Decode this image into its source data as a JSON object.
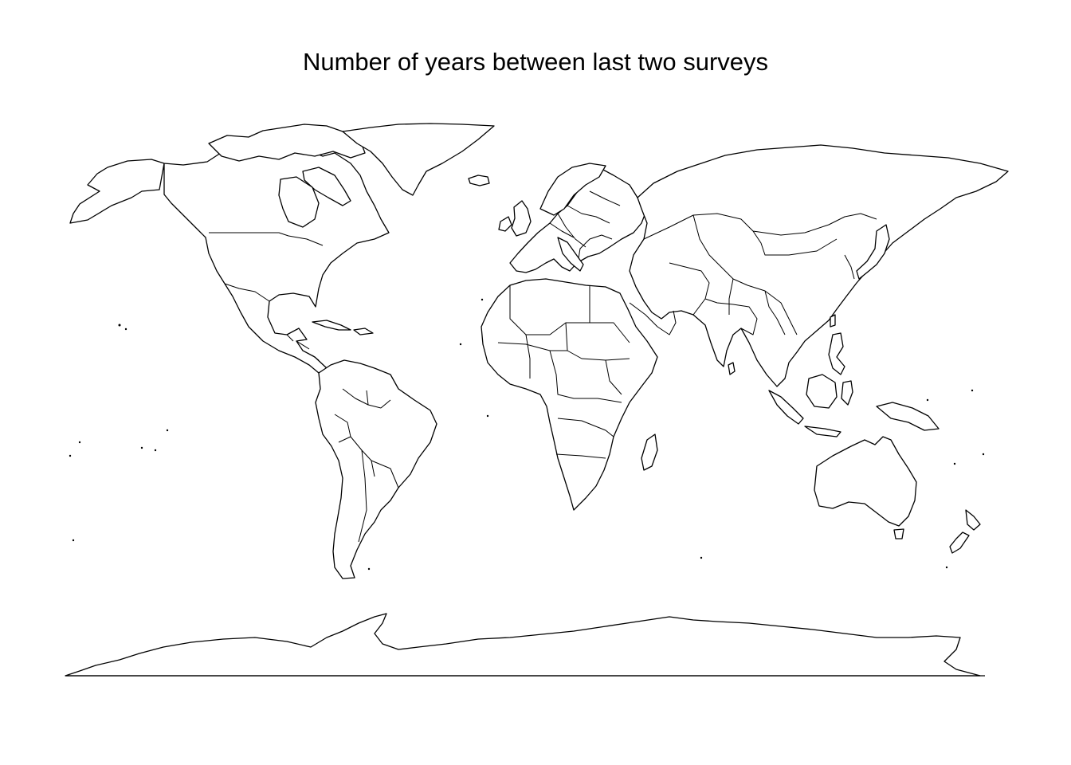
{
  "title": "Number of years between last two surveys",
  "map": {
    "projection": "equirectangular",
    "fill_color": "#ffffff",
    "stroke_color": "#000000",
    "regions": [
      "north-america",
      "greenland",
      "south-america",
      "europe",
      "africa",
      "asia",
      "australia",
      "new-zealand",
      "antarctica",
      "japan",
      "madagascar",
      "british-isles",
      "iceland",
      "indonesia",
      "philippines",
      "caribbean"
    ]
  }
}
